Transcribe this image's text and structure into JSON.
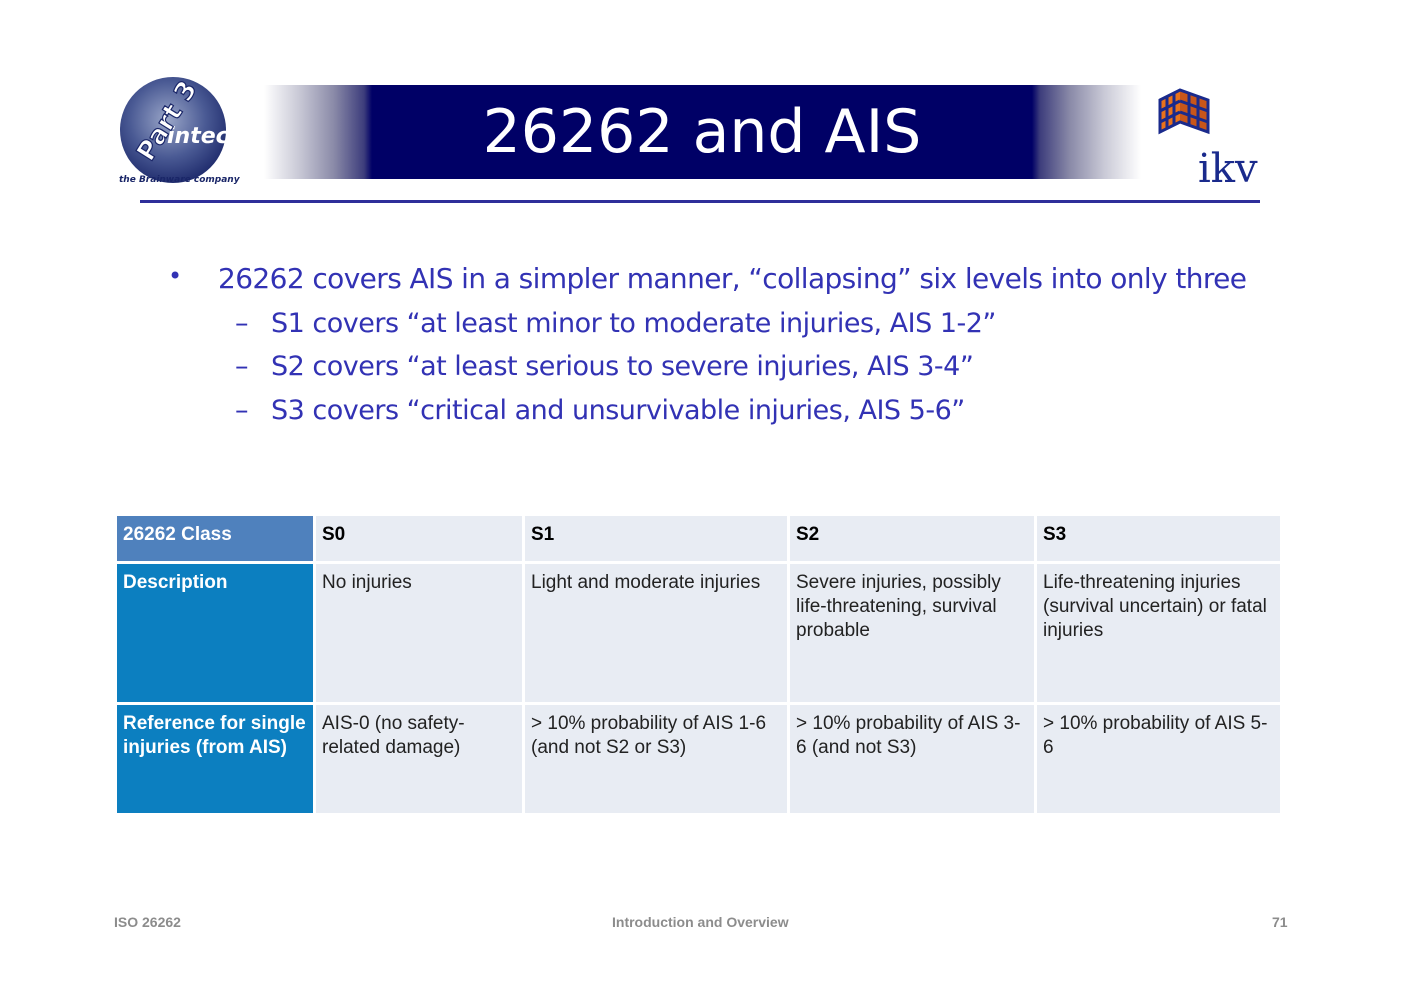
{
  "header": {
    "title": "26262 and AIS",
    "logo_left": {
      "brand": "intecs",
      "badge": "Part 3",
      "tagline": "the Brainware company",
      "icon": "intecs-logo"
    },
    "logo_right": {
      "brand": "ikv",
      "icon": "ikv-cube-logo"
    },
    "band_color": "#000066"
  },
  "bullets": {
    "main": "26262 covers AIS in a simpler manner, “collapsing” six levels into only three",
    "main_marker": "•",
    "sub_marker": "–",
    "sub": [
      "S1 covers “at least minor to moderate injuries, AIS 1-2”",
      "S2 covers “at least serious to severe injuries, AIS 3-4”",
      "S3 covers “critical and unsurvivable injuries, AIS 5-6”"
    ],
    "color": "#3232b4"
  },
  "table": {
    "header": [
      "26262 Class",
      "S0",
      "S1",
      "S2",
      "S3"
    ],
    "rows": [
      {
        "label": "Description",
        "cells": [
          "No injuries",
          "Light and moderate injuries",
          "Severe injuries, possibly life-threatening, survival probable",
          "Life-threatening injuries (survival uncertain) or fatal injuries"
        ]
      },
      {
        "label": "Reference for single injuries (from AIS)",
        "cells": [
          "AIS-0 (no safety-related damage)",
          "> 10% probability of AIS 1-6 (and not S2 or S3)",
          "> 10% probability of AIS 3-6 (and not S3)",
          "> 10% probability of AIS 5-6"
        ]
      }
    ],
    "colors": {
      "header_label": "#4f81bd",
      "row_label": "#0c7fc0",
      "cell": "#e8ecf3"
    }
  },
  "footer": {
    "left": "ISO 26262",
    "center": "Introduction and Overview",
    "right": "71"
  }
}
